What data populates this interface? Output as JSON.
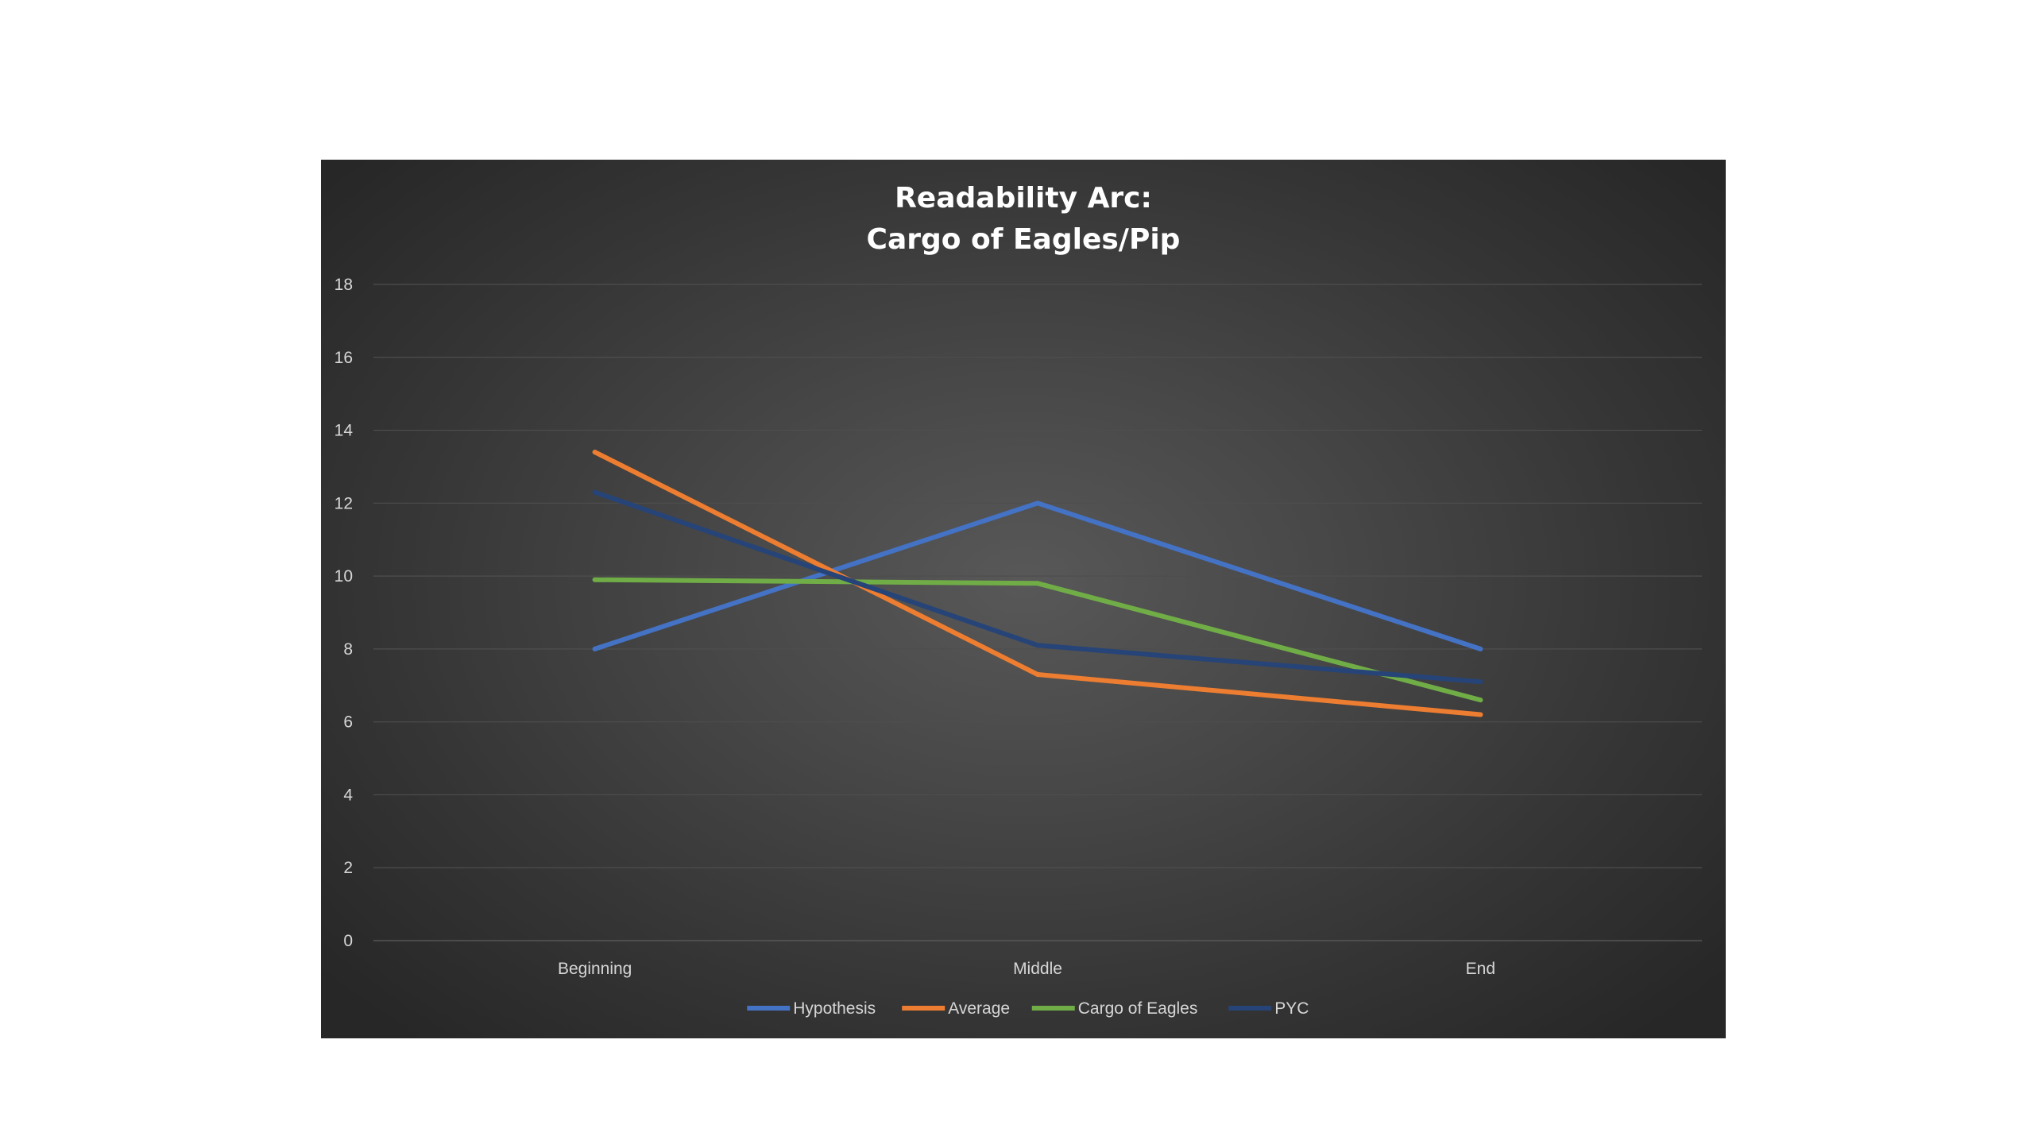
{
  "chart_data": {
    "type": "line",
    "title_lines": [
      "Readability Arc:",
      "Cargo of Eagles/Pip"
    ],
    "categories": [
      "Beginning",
      "Middle",
      "End"
    ],
    "ylim": [
      0,
      18
    ],
    "yticks": [
      0,
      2,
      4,
      6,
      8,
      10,
      12,
      14,
      16,
      18
    ],
    "ytick_labels": [
      "0",
      "2",
      "4",
      "6",
      "8",
      "10",
      "12",
      "14",
      "16",
      "18"
    ],
    "grid": true,
    "legend_position": "bottom",
    "series": [
      {
        "name": "Hypothesis",
        "values": [
          8.0,
          12.0,
          8.0
        ],
        "color": "#4472c4"
      },
      {
        "name": "Average",
        "values": [
          13.4,
          7.3,
          6.2
        ],
        "color": "#ed7d31"
      },
      {
        "name": "Cargo of Eagles",
        "values": [
          9.9,
          9.8,
          6.6
        ],
        "color": "#70ad47"
      },
      {
        "name": "PYC",
        "values": [
          12.3,
          8.1,
          7.1
        ],
        "color": "#264478"
      }
    ]
  }
}
